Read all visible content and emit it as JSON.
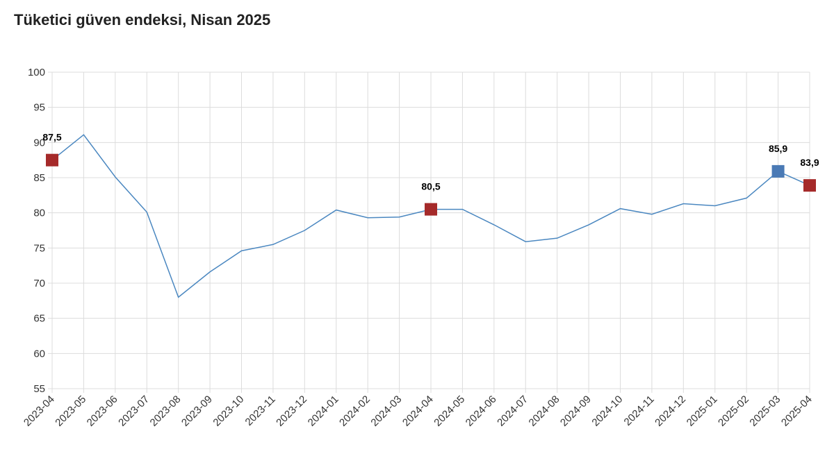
{
  "chart_data": {
    "type": "line",
    "title": "Tüketici güven endeksi, Nisan 2025",
    "categories": [
      "2023-04",
      "2023-05",
      "2023-06",
      "2023-07",
      "2023-08",
      "2023-09",
      "2023-10",
      "2023-11",
      "2023-12",
      "2024-01",
      "2024-02",
      "2024-03",
      "2024-04",
      "2024-05",
      "2024-06",
      "2024-07",
      "2024-08",
      "2024-09",
      "2024-10",
      "2024-11",
      "2024-12",
      "2025-01",
      "2025-02",
      "2025-03",
      "2025-04"
    ],
    "values": [
      87.5,
      91.1,
      85.1,
      80.1,
      68.0,
      71.6,
      74.6,
      75.5,
      77.5,
      80.4,
      79.3,
      79.4,
      80.5,
      80.5,
      78.3,
      75.9,
      76.4,
      78.3,
      80.6,
      79.8,
      81.3,
      81.0,
      82.1,
      85.9,
      83.9
    ],
    "value_labels": [
      "87,5",
      null,
      null,
      null,
      null,
      null,
      null,
      null,
      null,
      null,
      null,
      null,
      "80,5",
      null,
      null,
      null,
      null,
      null,
      null,
      null,
      null,
      null,
      null,
      "85,9",
      "83,9"
    ],
    "marker_colors": [
      "#a52a2a",
      null,
      null,
      null,
      null,
      null,
      null,
      null,
      null,
      null,
      null,
      null,
      "#a52a2a",
      null,
      null,
      null,
      null,
      null,
      null,
      null,
      null,
      null,
      null,
      "#4a7ab5",
      "#a52a2a"
    ],
    "color": "#4a87c0",
    "ylim": [
      55,
      100
    ],
    "yticks": [
      55,
      60,
      65,
      70,
      75,
      80,
      85,
      90,
      95,
      100
    ],
    "grid": true
  }
}
